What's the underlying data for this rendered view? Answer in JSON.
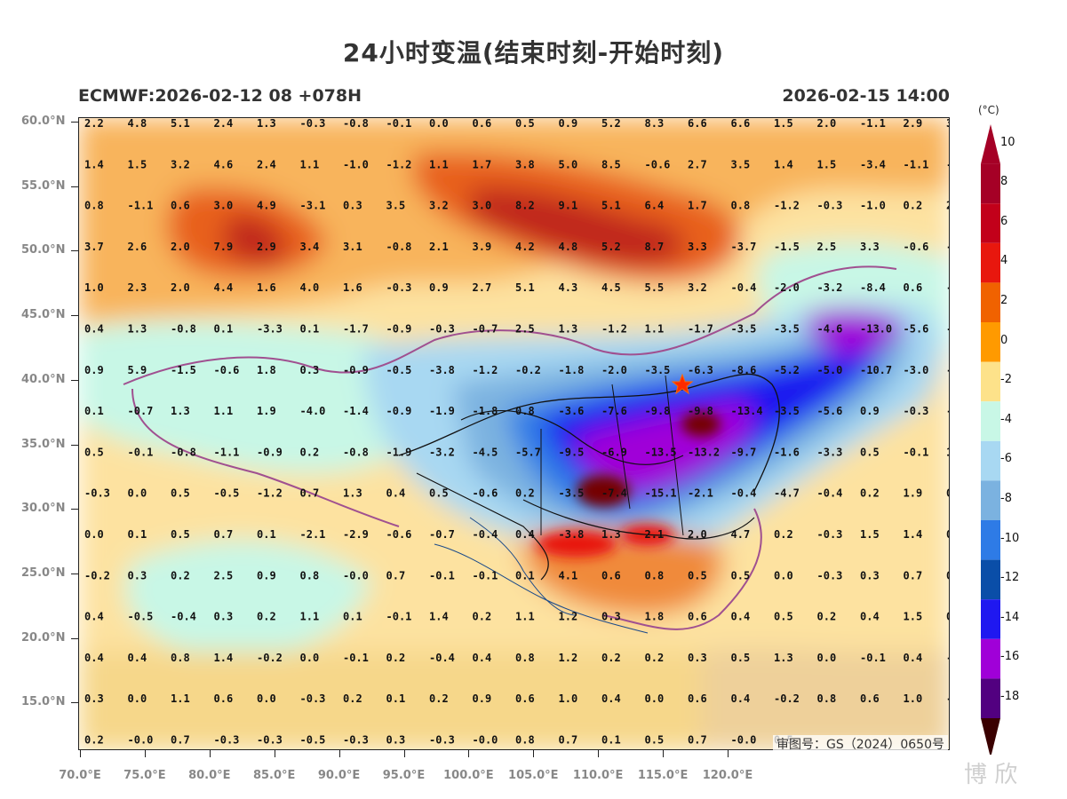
{
  "header": {
    "title": "24小时变温(结束时刻-开始时刻)",
    "model_run": "ECMWF:2026-02-12 08 +078H",
    "valid_time": "2026-02-15 14:00"
  },
  "axes": {
    "lat_labels": [
      "60.0°N",
      "55.0°N",
      "50.0°N",
      "45.0°N",
      "40.0°N",
      "35.0°N",
      "30.0°N",
      "25.0°N",
      "20.0°N",
      "15.0°N"
    ],
    "lon_labels": [
      "70.0°E",
      "75.0°E",
      "80.0°E",
      "85.0°E",
      "90.0°E",
      "95.0°E",
      "100.0°E",
      "105.0°E",
      "110.0°E",
      "115.0°E",
      "120.0°E"
    ]
  },
  "colorbar": {
    "unit": "(°C)",
    "labels": [
      "10",
      "8",
      "6",
      "4",
      "2",
      "0",
      "-2",
      "-4",
      "-6",
      "-8",
      "-10",
      "-12",
      "-14",
      "-16",
      "-18"
    ],
    "colors": [
      "#ffffff",
      "#a50026",
      "#c2001a",
      "#e8170e",
      "#f06200",
      "#ff9a00",
      "#fde28a",
      "#c8f7e6",
      "#a8d8f2",
      "#7bb2e0",
      "#2e7be6",
      "#0a4ea8",
      "#1f18f0",
      "#a000d8",
      "#520080",
      "#740000"
    ]
  },
  "grid_values": [
    [
      "2.2",
      "4.8",
      "5.1",
      "2.4",
      "1.3",
      "-0.3",
      "-0.8",
      "-0.1",
      "0.0",
      "0.6",
      "0.5",
      "0.9",
      "5.2",
      "8.3",
      "6.6",
      "6.6",
      "1.5",
      "2.0",
      "-1.1",
      "2.9",
      "3.8"
    ],
    [
      "1.4",
      "1.5",
      "3.2",
      "4.6",
      "2.4",
      "1.1",
      "-1.0",
      "-1.2",
      "1.1",
      "1.7",
      "3.8",
      "5.0",
      "8.5",
      "-0.6",
      "2.7",
      "3.5",
      "1.4",
      "1.5",
      "-3.4",
      "-1.1",
      "-0.5"
    ],
    [
      "0.8",
      "-1.1",
      "0.6",
      "3.0",
      "4.9",
      "-3.1",
      "0.3",
      "3.5",
      "3.2",
      "3.0",
      "8.2",
      "9.1",
      "5.1",
      "6.4",
      "1.7",
      "0.8",
      "-1.2",
      "-0.3",
      "-1.0",
      "0.2",
      "2.5"
    ],
    [
      "3.7",
      "2.6",
      "2.0",
      "7.9",
      "2.9",
      "3.4",
      "3.1",
      "-0.8",
      "2.1",
      "3.9",
      "4.2",
      "4.8",
      "5.2",
      "8.7",
      "3.3",
      "-3.7",
      "-1.5",
      "2.5",
      "3.3",
      "-0.6",
      "-0.4"
    ],
    [
      "1.0",
      "2.3",
      "2.0",
      "4.4",
      "1.6",
      "4.0",
      "1.6",
      "-0.3",
      "0.9",
      "2.7",
      "5.1",
      "4.3",
      "4.5",
      "5.5",
      "3.2",
      "-0.4",
      "-2.0",
      "-3.2",
      "-8.4",
      "0.6",
      "-6.0"
    ],
    [
      "0.4",
      "1.3",
      "-0.8",
      "0.1",
      "-3.3",
      "0.1",
      "-1.7",
      "-0.9",
      "-0.3",
      "-0.7",
      "2.5",
      "1.3",
      "-1.2",
      "1.1",
      "-1.7",
      "-3.5",
      "-3.5",
      "-4.6",
      "-13.0",
      "-5.6",
      "-10.1"
    ],
    [
      "0.9",
      "5.9",
      "-1.5",
      "-0.6",
      "1.8",
      "0.3",
      "-0.9",
      "-0.5",
      "-3.8",
      "-1.2",
      "-0.2",
      "-1.8",
      "-2.0",
      "-3.5",
      "-6.3",
      "-8.6",
      "-5.2",
      "-5.0",
      "-10.7",
      "-3.0",
      "-4.1"
    ],
    [
      "0.1",
      "-0.7",
      "1.3",
      "1.1",
      "1.9",
      "-4.0",
      "-1.4",
      "-0.9",
      "-1.9",
      "-1.8",
      "0.8",
      "-3.6",
      "-7.6",
      "-9.8",
      "-9.8",
      "-13.4",
      "-3.5",
      "-5.6",
      "0.9",
      "-0.3",
      "-1.0"
    ],
    [
      "0.5",
      "-0.1",
      "-0.8",
      "-1.1",
      "-0.9",
      "0.2",
      "-0.8",
      "-1.9",
      "-3.2",
      "-4.5",
      "-5.7",
      "-9.5",
      "-6.9",
      "-13.5",
      "-13.2",
      "-9.7",
      "-1.6",
      "-3.3",
      "0.5",
      "-0.1",
      "1.1"
    ],
    [
      "-0.3",
      "0.0",
      "0.5",
      "-0.5",
      "-1.2",
      "0.7",
      "1.3",
      "0.4",
      "0.5",
      "-0.6",
      "0.2",
      "-3.5",
      "-7.4",
      "-15.1",
      "-2.1",
      "-0.4",
      "-4.7",
      "-0.4",
      "0.2",
      "1.9",
      "0.6"
    ],
    [
      "0.0",
      "0.1",
      "0.5",
      "0.7",
      "0.1",
      "-2.1",
      "-2.9",
      "-0.6",
      "-0.7",
      "-0.4",
      "0.4",
      "-3.8",
      "1.3",
      "2.1",
      "2.0",
      "4.7",
      "0.2",
      "-0.3",
      "1.5",
      "1.4",
      "0.9"
    ],
    [
      "-0.2",
      "0.3",
      "0.2",
      "2.5",
      "0.9",
      "0.8",
      "-0.0",
      "0.7",
      "-0.1",
      "-0.1",
      "0.1",
      "4.1",
      "0.6",
      "0.8",
      "0.5",
      "0.5",
      "0.0",
      "-0.3",
      "0.3",
      "0.7",
      "0.8"
    ],
    [
      "0.4",
      "-0.5",
      "-0.4",
      "0.3",
      "0.2",
      "1.1",
      "0.1",
      "-0.1",
      "1.4",
      "0.2",
      "1.1",
      "1.2",
      "0.3",
      "1.8",
      "0.6",
      "0.4",
      "0.5",
      "0.2",
      "0.4",
      "1.5",
      "0.0"
    ],
    [
      "0.4",
      "0.4",
      "0.8",
      "1.4",
      "-0.2",
      "0.0",
      "-0.1",
      "0.2",
      "-0.4",
      "0.4",
      "0.8",
      "1.2",
      "0.2",
      "0.2",
      "0.3",
      "0.5",
      "1.3",
      "0.0",
      "-0.1",
      "0.4",
      "-0.3"
    ],
    [
      "0.3",
      "0.0",
      "1.1",
      "0.6",
      "0.0",
      "-0.3",
      "0.2",
      "0.1",
      "0.2",
      "0.9",
      "0.6",
      "1.0",
      "0.4",
      "0.0",
      "0.6",
      "0.4",
      "-0.2",
      "0.8",
      "0.6",
      "1.0",
      "-0.2"
    ],
    [
      "0.2",
      "-0.0",
      "0.7",
      "-0.3",
      "-0.3",
      "-0.5",
      "-0.3",
      "0.3",
      "-0.3",
      "-0.0",
      "0.8",
      "0.7",
      "0.1",
      "0.5",
      "0.7",
      "-0.0",
      "0.5",
      "",
      "",
      "",
      ""
    ]
  ],
  "annotations": {
    "review_number": "审图号：GS（2024）0650号",
    "watermark": "博 欣",
    "marker_icon": "star-icon"
  }
}
